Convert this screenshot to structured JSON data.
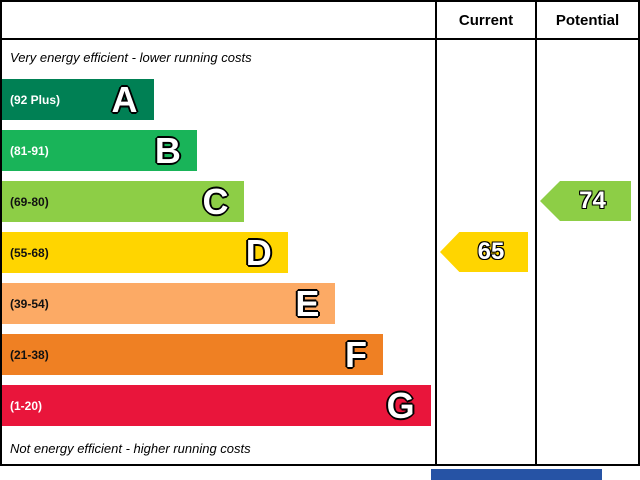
{
  "header": {
    "current_label": "Current",
    "potential_label": "Potential"
  },
  "captions": {
    "top": "Very energy efficient - lower running costs",
    "bottom": "Not energy efficient - higher running costs"
  },
  "bands": [
    {
      "letter": "A",
      "range": "(92 Plus)",
      "color": "#008054",
      "range_color": "#ffffff",
      "width_pct": 35
    },
    {
      "letter": "B",
      "range": "(81-91)",
      "color": "#19b459",
      "range_color": "#ffffff",
      "width_pct": 45
    },
    {
      "letter": "C",
      "range": "(69-80)",
      "color": "#8dce46",
      "range_color": "#111111",
      "width_pct": 56
    },
    {
      "letter": "D",
      "range": "(55-68)",
      "color": "#ffd500",
      "range_color": "#111111",
      "width_pct": 66
    },
    {
      "letter": "E",
      "range": "(39-54)",
      "color": "#fcaa65",
      "range_color": "#111111",
      "width_pct": 77
    },
    {
      "letter": "F",
      "range": "(21-38)",
      "color": "#ef8023",
      "range_color": "#111111",
      "width_pct": 88
    },
    {
      "letter": "G",
      "range": "(1-20)",
      "color": "#e9153b",
      "range_color": "#ffffff",
      "width_pct": 99
    }
  ],
  "current": {
    "value": "65",
    "color": "#ffd500",
    "band_row": 3
  },
  "potential": {
    "value": "74",
    "color": "#8dce46",
    "band_row": 2
  },
  "footer": {
    "bar_color": "#2653a5"
  },
  "chart_data": {
    "type": "bar",
    "title": "",
    "categories": [
      "A",
      "B",
      "C",
      "D",
      "E",
      "F",
      "G"
    ],
    "band_ranges": [
      "(92 Plus)",
      "(81-91)",
      "(69-80)",
      "(55-68)",
      "(39-54)",
      "(21-38)",
      "(1-20)"
    ],
    "series": [
      {
        "name": "Current",
        "value": 65,
        "band": "D"
      },
      {
        "name": "Potential",
        "value": 74,
        "band": "C"
      }
    ],
    "annotations": [
      "Very energy efficient - lower running costs",
      "Not energy efficient - higher running costs"
    ],
    "legend_position": "top-right-columns",
    "grid": false
  }
}
